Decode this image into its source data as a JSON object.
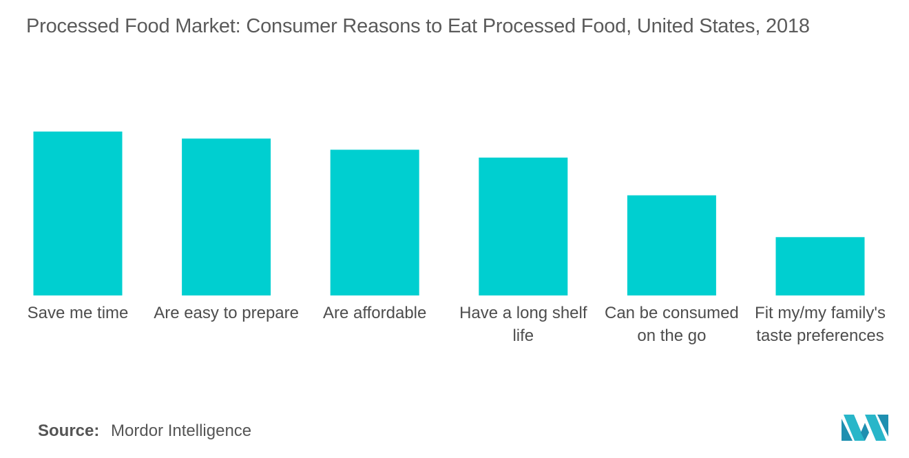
{
  "chart_data": {
    "type": "bar",
    "title": "Processed Food Market: Consumer Reasons to Eat Processed Food, United States, 2018",
    "categories": [
      "Save me time",
      "Are easy to prepare",
      "Are affordable",
      "Have a long shelf life",
      "Can be consumed on the go",
      "Fit my/my family's taste preferences"
    ],
    "values": [
      100,
      95.7,
      88.9,
      84.1,
      61.1,
      35.6
    ],
    "ylim": [
      0,
      100
    ],
    "xlabel": "",
    "ylabel": "",
    "bar_color": "#00cfd0",
    "grid": false,
    "legend": "none"
  },
  "source": {
    "label": "Source:",
    "value": "Mordor Intelligence"
  },
  "logo": {
    "icon": "mordor-intelligence-logo-icon",
    "color": "#29b6c9"
  }
}
